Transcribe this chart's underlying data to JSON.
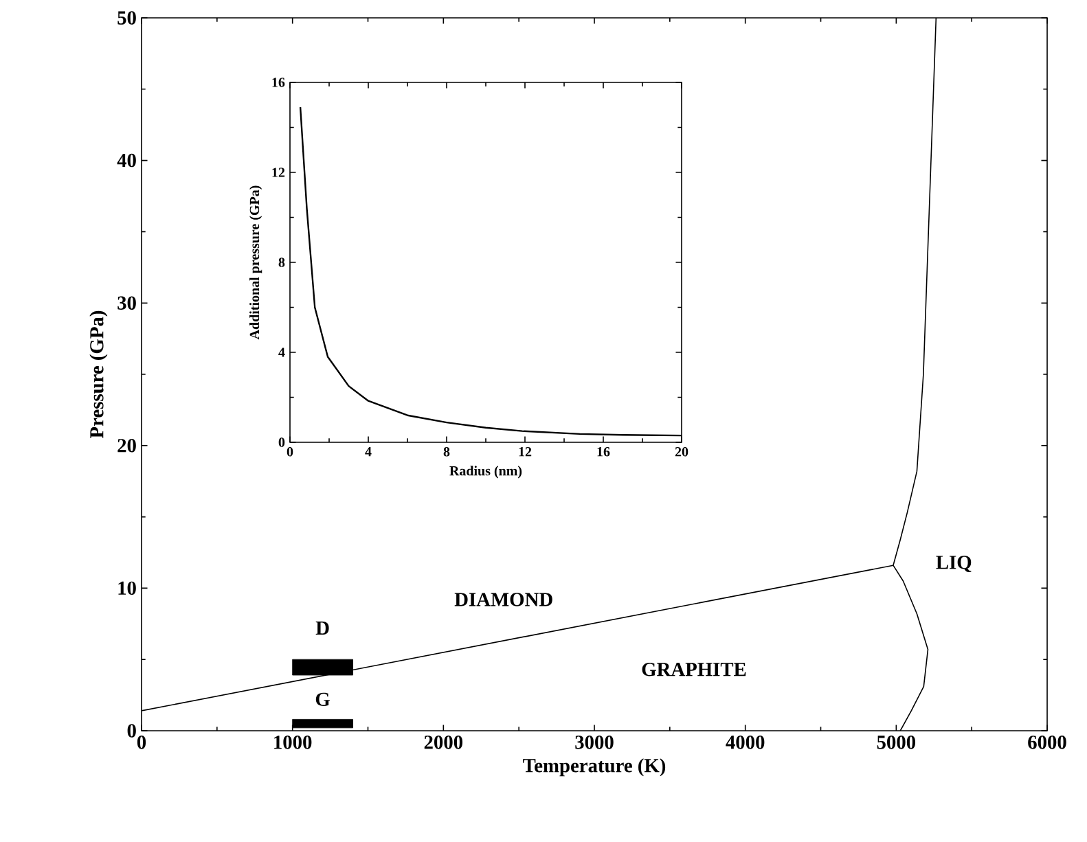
{
  "chart_data": [
    {
      "type": "line",
      "xlabel": "Temperature (K)",
      "ylabel": "Pressure (GPa)",
      "xlim": [
        0,
        6000
      ],
      "ylim": [
        0,
        50
      ],
      "xticks": [
        0,
        1000,
        2000,
        3000,
        4000,
        5000,
        6000
      ],
      "yticks": [
        0,
        10,
        20,
        30,
        40,
        50
      ],
      "series": [
        {
          "x": [
            0,
            4980
          ],
          "values": [
            1.4,
            11.6
          ],
          "color": "#000000"
        },
        {
          "x": [
            4980,
            5027,
            5073,
            5137,
            5180,
            5264
          ],
          "values": [
            11.6,
            13.4,
            15.3,
            18.2,
            25,
            50
          ],
          "color": "#000000"
        },
        {
          "x": [
            4980,
            5046,
            5137,
            5210,
            5182,
            5100,
            5027
          ],
          "values": [
            11.6,
            10.5,
            8.2,
            5.7,
            3.1,
            1.4,
            0
          ],
          "color": "#000000"
        },
        {
          "type": "bar",
          "x": [
            1200
          ],
          "values": [
            1.1
          ],
          "base": [
            3.9
          ],
          "color": "#000000"
        },
        {
          "type": "bar",
          "x": [
            1200
          ],
          "values": [
            0.6
          ],
          "base": [
            0.2
          ],
          "color": "#000000"
        }
      ],
      "annotations": [
        "DIAMOND",
        "GRAPHITE",
        "LIQ",
        "D",
        "G"
      ]
    },
    {
      "type": "line",
      "xlabel": "Radius (nm)",
      "ylabel": "Additional pressure (GPa)",
      "xlim": [
        0,
        20
      ],
      "ylim": [
        0,
        16
      ],
      "xticks": [
        0,
        4,
        8,
        12,
        16,
        20
      ],
      "yticks": [
        0,
        4,
        8,
        12,
        16
      ],
      "series": [
        {
          "x": [
            0.53,
            0.86,
            1.27,
            1.93,
            3,
            4,
            6,
            8,
            10,
            11.85,
            14.8,
            17,
            20
          ],
          "values": [
            14.9,
            10.4,
            6.0,
            3.8,
            2.5,
            1.84,
            1.2,
            0.88,
            0.65,
            0.5,
            0.37,
            0.33,
            0.3
          ],
          "color": "#000000"
        }
      ]
    }
  ]
}
